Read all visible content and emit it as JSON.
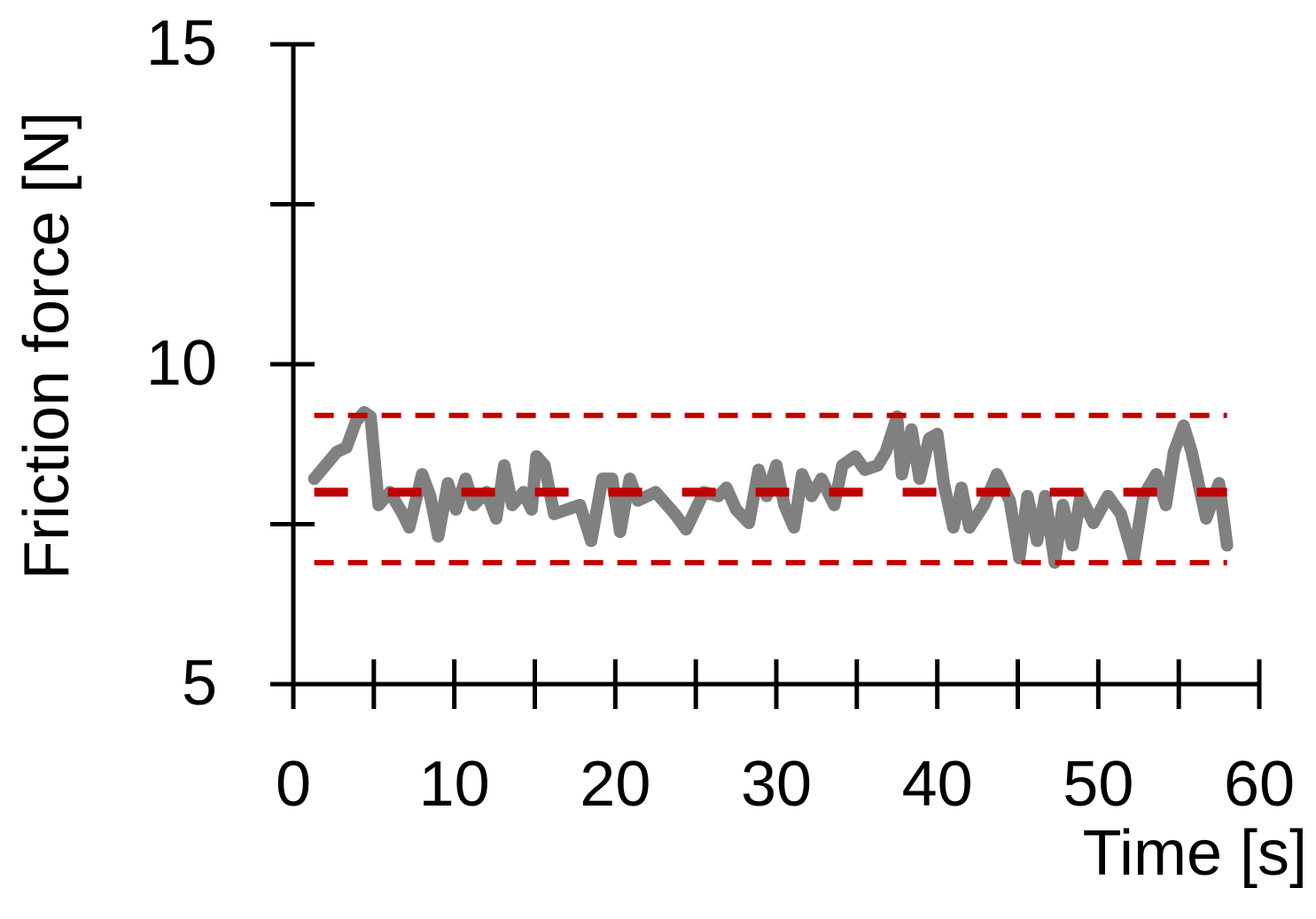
{
  "chart_data": {
    "type": "line",
    "x_label": "Time [s]",
    "y_label": "Friction force [N]",
    "x": [
      1.3,
      2.7,
      3.3,
      3.9,
      4.4,
      4.8,
      5.3,
      6.0,
      6.8,
      7.2,
      8.0,
      8.5,
      9.0,
      9.6,
      10.1,
      10.7,
      11.2,
      12.0,
      12.6,
      13.1,
      13.6,
      14.3,
      14.8,
      15.1,
      15.6,
      16.2,
      17.0,
      17.8,
      18.5,
      19.2,
      19.8,
      20.3,
      20.9,
      21.4,
      22.5,
      23.7,
      24.4,
      25.5,
      26.4,
      26.9,
      27.5,
      28.3,
      28.9,
      29.4,
      30.0,
      30.5,
      31.1,
      31.6,
      32.2,
      32.8,
      33.6,
      34.1,
      34.9,
      35.5,
      36.3,
      36.8,
      37.5,
      37.8,
      38.4,
      38.9,
      39.5,
      40.0,
      40.4,
      41.0,
      41.5,
      42.0,
      42.9,
      43.7,
      44.5,
      45.1,
      45.6,
      46.2,
      46.7,
      47.3,
      47.8,
      48.4,
      48.9,
      49.7,
      50.6,
      51.4,
      52.2,
      52.8,
      53.6,
      54.2,
      54.7,
      55.3,
      55.8,
      56.7,
      57.5,
      58.0
    ],
    "values": [
      8.21,
      8.63,
      8.7,
      9.11,
      9.25,
      9.18,
      7.8,
      8.0,
      7.66,
      7.45,
      8.28,
      7.94,
      7.31,
      8.14,
      7.73,
      8.21,
      7.8,
      8.0,
      7.59,
      8.42,
      7.8,
      8.0,
      7.73,
      8.56,
      8.42,
      7.66,
      7.73,
      7.8,
      7.24,
      8.21,
      8.21,
      7.38,
      8.21,
      7.87,
      8.0,
      7.66,
      7.42,
      8.0,
      7.94,
      8.07,
      7.73,
      7.52,
      8.35,
      7.94,
      8.42,
      7.8,
      7.45,
      8.28,
      7.94,
      8.21,
      7.8,
      8.42,
      8.56,
      8.35,
      8.42,
      8.63,
      9.18,
      8.28,
      8.98,
      8.21,
      8.84,
      8.91,
      8.14,
      7.45,
      8.07,
      7.45,
      7.8,
      8.28,
      7.87,
      6.97,
      7.94,
      7.24,
      7.94,
      6.9,
      7.8,
      7.17,
      7.94,
      7.52,
      7.94,
      7.66,
      6.97,
      7.94,
      8.28,
      7.8,
      8.63,
      9.04,
      8.63,
      7.59,
      8.14,
      7.17
    ],
    "color": "#808080",
    "hlines": [
      {
        "value": 8.0,
        "color": "#c00000",
        "style": "long-dash"
      },
      {
        "value": 9.2,
        "color": "#c00000",
        "style": "short-dash"
      },
      {
        "value": 6.9,
        "color": "#c00000",
        "style": "short-dash"
      }
    ],
    "xlim": [
      0,
      60
    ],
    "xticks": [
      0,
      10,
      20,
      30,
      40,
      50,
      60
    ],
    "xminorticks": [
      5,
      15,
      25,
      35,
      45,
      55
    ],
    "ylim": [
      5,
      15
    ],
    "yticks": [
      5,
      10,
      15
    ],
    "yminorticks": [
      7.5,
      12.5
    ]
  }
}
